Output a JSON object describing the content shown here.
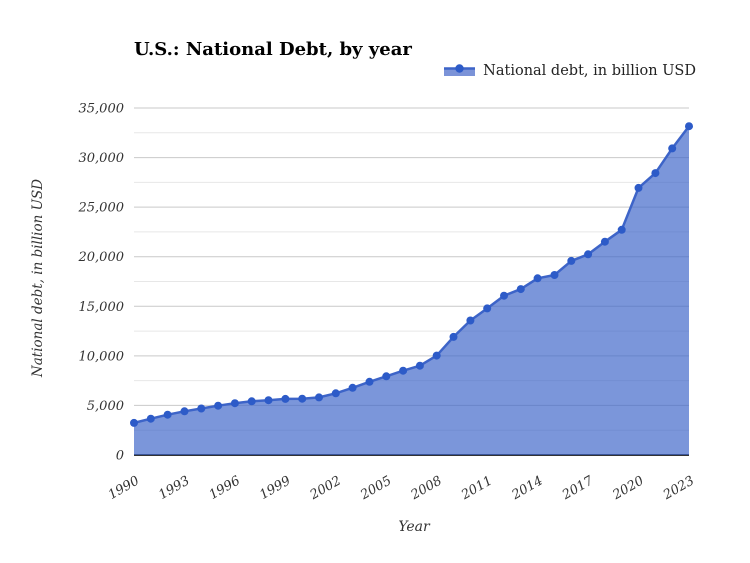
{
  "header": {
    "title": "U.S.: National Debt, by year"
  },
  "legend": {
    "label": "National debt, in billion USD"
  },
  "axes": {
    "y_title": "National debt, in billion USD",
    "x_title": "Year"
  },
  "chart_data": {
    "type": "area",
    "title": "U.S.: National Debt, by year",
    "xlabel": "Year",
    "ylabel": "National debt, in billion USD",
    "legend_entries": [
      "National debt, in billion USD"
    ],
    "legend_position": "top-right",
    "grid": true,
    "x": [
      1990,
      1991,
      1992,
      1993,
      1994,
      1995,
      1996,
      1997,
      1998,
      1999,
      2000,
      2001,
      2002,
      2003,
      2004,
      2005,
      2006,
      2007,
      2008,
      2009,
      2010,
      2011,
      2012,
      2013,
      2014,
      2015,
      2016,
      2017,
      2018,
      2019,
      2020,
      2021,
      2022,
      2023
    ],
    "series": [
      {
        "name": "National debt, in billion USD",
        "values": [
          3233,
          3665,
          4065,
          4411,
          4693,
          4974,
          5225,
          5413,
          5526,
          5656,
          5674,
          5807,
          6228,
          6783,
          7379,
          7933,
          8507,
          9008,
          10025,
          11910,
          13562,
          14790,
          16066,
          16738,
          17824,
          18151,
          19573,
          20245,
          21516,
          22719,
          26945,
          28429,
          30928,
          33167
        ]
      }
    ],
    "ylim": [
      0,
      35000
    ],
    "y_major_step": 5000,
    "y_minor_step": 2500,
    "x_tick_step": 3,
    "x_tick_labels": [
      "1990",
      "1993",
      "1996",
      "1999",
      "2002",
      "2005",
      "2008",
      "2011",
      "2014",
      "2017",
      "2020",
      "2023"
    ],
    "y_tick_labels": [
      "0",
      "5,000",
      "10,000",
      "15,000",
      "20,000",
      "25,000",
      "30,000",
      "35,000"
    ],
    "colors": {
      "line": "#3d64c8",
      "marker": "#2d5bc8",
      "fill": "#3d64c8",
      "fill_opacity": 0.68,
      "grid_major": "#c9c9c9",
      "grid_minor": "#e7e7e7",
      "axis_line": "#333333",
      "tick_text": "#333333"
    }
  }
}
